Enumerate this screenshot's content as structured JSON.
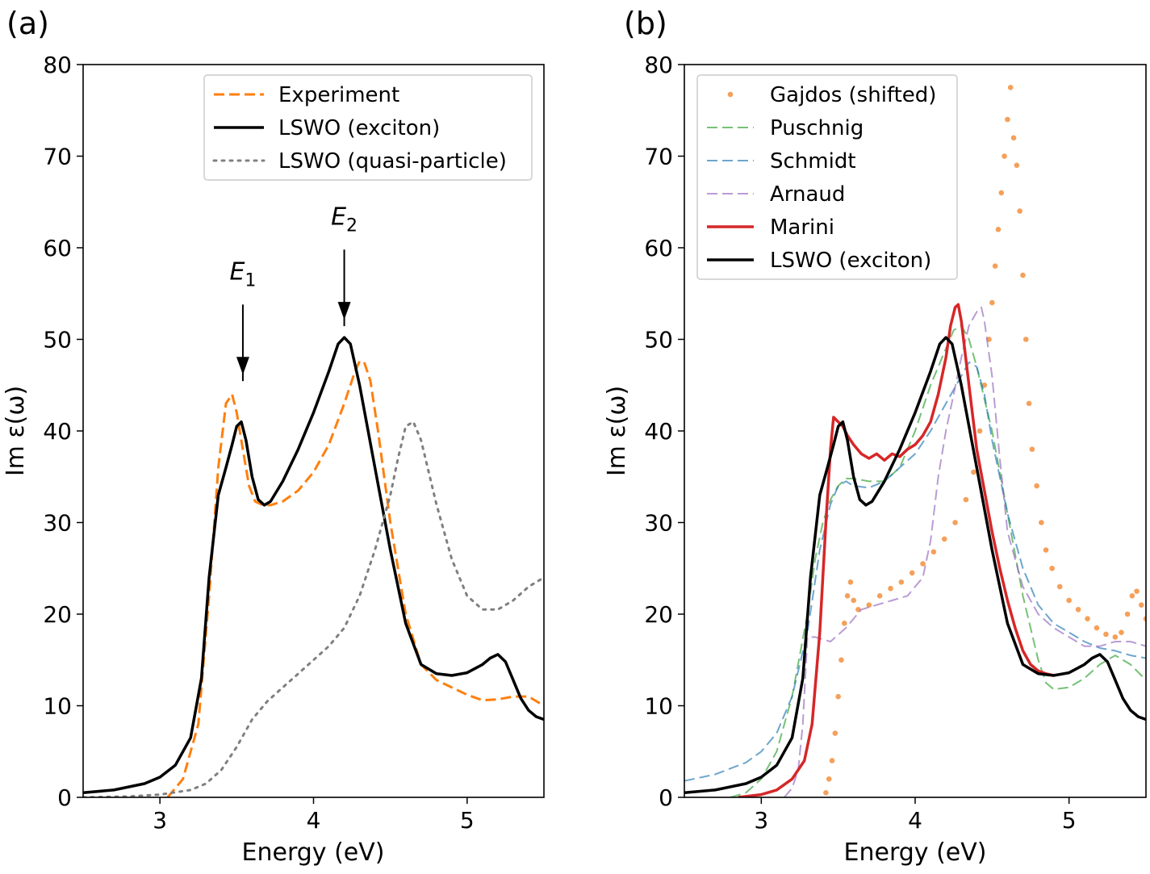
{
  "chart_data": [
    {
      "panel_label": "(a)",
      "type": "line",
      "xlabel": "Energy (eV)",
      "ylabel": "Im ε(ω)",
      "xlim": [
        2.5,
        5.5
      ],
      "ylim": [
        0,
        80
      ],
      "xticks": [
        3,
        4,
        5
      ],
      "yticks": [
        0,
        10,
        20,
        30,
        40,
        50,
        60,
        70,
        80
      ],
      "grid": false,
      "legend_position": "top-right",
      "annotations": [
        {
          "text": "E1",
          "main": "E",
          "sub": "1",
          "x": 3.54,
          "y_tip": 46.5,
          "y_tail": 53.8,
          "y_text": 56.5
        },
        {
          "text": "E2",
          "main": "E",
          "sub": "2",
          "x": 4.2,
          "y_tip": 52.5,
          "y_tail": 59.8,
          "y_text": 62.5
        }
      ],
      "series": [
        {
          "name": "Experiment",
          "color": "#ff7f0e",
          "style": "dashed",
          "width": 3,
          "x": [
            3.05,
            3.15,
            3.25,
            3.32,
            3.38,
            3.43,
            3.47,
            3.5,
            3.54,
            3.58,
            3.62,
            3.67,
            3.72,
            3.8,
            3.9,
            4.0,
            4.1,
            4.2,
            4.27,
            4.3,
            4.33,
            4.37,
            4.42,
            4.5,
            4.6,
            4.7,
            4.8,
            4.9,
            5.0,
            5.1,
            5.2,
            5.3,
            5.4,
            5.5
          ],
          "y": [
            0,
            2,
            8,
            22,
            36,
            43,
            44,
            42,
            38,
            34,
            32.3,
            31.9,
            31.9,
            32.3,
            33.5,
            35.5,
            38.5,
            43,
            46.5,
            47.6,
            47.5,
            45.5,
            40,
            30,
            20,
            14.5,
            12.8,
            12,
            11.2,
            10.6,
            10.7,
            11,
            11,
            10
          ]
        },
        {
          "name": "LSWO (exciton)",
          "color": "#000000",
          "style": "solid",
          "width": 3.5,
          "x": [
            2.5,
            2.7,
            2.9,
            3.0,
            3.1,
            3.2,
            3.27,
            3.32,
            3.38,
            3.43,
            3.47,
            3.5,
            3.53,
            3.56,
            3.6,
            3.64,
            3.68,
            3.72,
            3.8,
            3.9,
            4.0,
            4.1,
            4.16,
            4.2,
            4.24,
            4.3,
            4.4,
            4.5,
            4.6,
            4.7,
            4.8,
            4.9,
            5.0,
            5.1,
            5.15,
            5.2,
            5.25,
            5.3,
            5.35,
            5.4,
            5.45,
            5.5
          ],
          "y": [
            0.5,
            0.8,
            1.5,
            2.2,
            3.5,
            6.5,
            13,
            24,
            33,
            36,
            38.5,
            40.5,
            41,
            39,
            35,
            32.5,
            31.9,
            32.3,
            34.5,
            38,
            42,
            46.5,
            49.5,
            50.2,
            49.5,
            45,
            36,
            27,
            19,
            14.5,
            13.5,
            13.3,
            13.6,
            14.5,
            15.2,
            15.6,
            14.8,
            12.8,
            10.8,
            9.5,
            8.8,
            8.5
          ]
        },
        {
          "name": "LSWO (quasi-particle)",
          "color": "#808080",
          "style": "dotted",
          "width": 3,
          "x": [
            2.5,
            2.8,
            3.0,
            3.2,
            3.3,
            3.4,
            3.5,
            3.6,
            3.7,
            3.8,
            3.9,
            4.0,
            4.1,
            4.2,
            4.3,
            4.4,
            4.5,
            4.55,
            4.6,
            4.65,
            4.7,
            4.8,
            4.9,
            5.0,
            5.1,
            5.2,
            5.3,
            5.4,
            5.5
          ],
          "y": [
            0,
            0.1,
            0.3,
            0.8,
            1.5,
            3,
            5.5,
            8.5,
            10.5,
            12,
            13.5,
            15,
            16.5,
            18.5,
            22,
            27,
            33,
            37,
            40.5,
            41,
            39,
            32,
            26,
            22,
            20.5,
            20.5,
            21.5,
            23,
            24
          ]
        }
      ]
    },
    {
      "panel_label": "(b)",
      "type": "line",
      "xlabel": "Energy (eV)",
      "ylabel": "Im ε(ω)",
      "xlim": [
        2.5,
        5.5
      ],
      "ylim": [
        0,
        80
      ],
      "xticks": [
        3,
        4,
        5
      ],
      "yticks": [
        0,
        10,
        20,
        30,
        40,
        50,
        60,
        70,
        80
      ],
      "grid": false,
      "legend_position": "top-left",
      "series": [
        {
          "name": "Gajdos (shifted)",
          "color": "#f5a05a",
          "style": "dots",
          "width": 0,
          "x": [
            3.42,
            3.44,
            3.46,
            3.48,
            3.5,
            3.52,
            3.54,
            3.56,
            3.58,
            3.6,
            3.63,
            3.7,
            3.77,
            3.84,
            3.91,
            3.98,
            4.05,
            4.12,
            4.19,
            4.26,
            4.33,
            4.38,
            4.42,
            4.45,
            4.48,
            4.5,
            4.52,
            4.54,
            4.56,
            4.58,
            4.6,
            4.62,
            4.64,
            4.66,
            4.68,
            4.7,
            4.72,
            4.74,
            4.76,
            4.79,
            4.82,
            4.85,
            4.89,
            4.94,
            5.0,
            5.06,
            5.12,
            5.18,
            5.24,
            5.3,
            5.34,
            5.38,
            5.41,
            5.44,
            5.47,
            5.5
          ],
          "y": [
            0.5,
            2,
            4,
            7,
            11,
            15,
            19,
            22,
            23.5,
            21.5,
            20.5,
            21,
            22,
            22.8,
            23.5,
            24.5,
            25.5,
            26.8,
            28.2,
            30,
            32.5,
            35.5,
            40,
            45,
            50,
            54,
            58,
            62,
            66,
            70,
            74,
            77.5,
            72,
            69,
            64,
            57,
            50,
            43,
            38,
            34,
            30,
            27,
            25,
            23,
            21.5,
            20.5,
            19.5,
            18.5,
            17.8,
            17.5,
            18,
            20,
            22,
            22.5,
            21,
            19.5
          ]
        },
        {
          "name": "Puschnig",
          "color": "#2ca02c",
          "style": "dashed",
          "width": 2,
          "opacity": 0.65,
          "x": [
            2.8,
            2.9,
            3.0,
            3.1,
            3.2,
            3.3,
            3.35,
            3.4,
            3.45,
            3.5,
            3.55,
            3.6,
            3.7,
            3.8,
            3.9,
            4.0,
            4.1,
            4.2,
            4.25,
            4.3,
            4.35,
            4.4,
            4.5,
            4.6,
            4.7,
            4.8,
            4.85,
            4.9,
            5.0,
            5.1,
            5.2,
            5.3,
            5.4,
            5.5
          ],
          "y": [
            0,
            0.5,
            2,
            5,
            11,
            20,
            26,
            30,
            32.5,
            34,
            34.8,
            34.8,
            34.5,
            34.5,
            36,
            40,
            45,
            49,
            51,
            51.5,
            50,
            47,
            40,
            31,
            22,
            15,
            12.5,
            11.8,
            12,
            13,
            14.5,
            15.5,
            14.5,
            12.8
          ]
        },
        {
          "name": "Schmidt",
          "color": "#1f77b4",
          "style": "dashed",
          "width": 2,
          "opacity": 0.65,
          "x": [
            2.5,
            2.7,
            2.9,
            3.0,
            3.1,
            3.2,
            3.3,
            3.38,
            3.45,
            3.5,
            3.55,
            3.6,
            3.7,
            3.8,
            3.9,
            4.0,
            4.1,
            4.2,
            4.25,
            4.3,
            4.35,
            4.4,
            4.45,
            4.5,
            4.6,
            4.7,
            4.8,
            4.9,
            5.0,
            5.1,
            5.2,
            5.3,
            5.4,
            5.5
          ],
          "y": [
            1.8,
            2.5,
            3.8,
            5,
            7,
            11,
            18,
            27,
            32,
            34,
            34.5,
            34,
            33.8,
            34.5,
            36,
            37.5,
            40,
            43,
            44.5,
            46,
            47.5,
            47,
            44,
            39,
            31,
            25,
            21,
            19,
            18,
            17,
            16.3,
            16,
            15.5,
            15.2
          ]
        },
        {
          "name": "Arnaud",
          "color": "#9467bd",
          "style": "dashed",
          "width": 2,
          "opacity": 0.65,
          "x": [
            3.15,
            3.2,
            3.24,
            3.27,
            3.3,
            3.35,
            3.45,
            3.55,
            3.65,
            3.75,
            3.85,
            3.95,
            4.05,
            4.1,
            4.15,
            4.2,
            4.25,
            4.3,
            4.35,
            4.4,
            4.43,
            4.45,
            4.5,
            4.55,
            4.6,
            4.7,
            4.8,
            4.9,
            5.0,
            5.1,
            5.2,
            5.3,
            5.4,
            5.5
          ],
          "y": [
            0,
            1,
            3,
            8,
            17.5,
            17.5,
            17,
            18.5,
            20.5,
            21,
            21.5,
            22,
            24,
            28,
            35,
            40,
            44,
            48,
            51.5,
            53,
            53.5,
            52,
            46,
            37,
            29,
            23,
            20,
            18.5,
            17.5,
            16.5,
            16.5,
            17,
            17,
            16.5
          ]
        },
        {
          "name": "Marini",
          "color": "#d62728",
          "style": "solid",
          "width": 3.5,
          "x": [
            2.85,
            3.0,
            3.1,
            3.2,
            3.28,
            3.33,
            3.38,
            3.42,
            3.45,
            3.47,
            3.5,
            3.53,
            3.56,
            3.6,
            3.65,
            3.7,
            3.75,
            3.8,
            3.85,
            3.9,
            3.95,
            4.0,
            4.05,
            4.1,
            4.15,
            4.2,
            4.23,
            4.26,
            4.28,
            4.3,
            4.35,
            4.4,
            4.45,
            4.5,
            4.55,
            4.6,
            4.65,
            4.7,
            4.75,
            4.8,
            4.85,
            4.9
          ],
          "y": [
            0,
            0.3,
            0.8,
            2,
            4,
            8,
            18,
            30,
            38,
            41.5,
            41,
            40.5,
            39.5,
            38.5,
            37.5,
            37,
            37.5,
            36.8,
            37.5,
            37.2,
            38,
            38.5,
            39.5,
            41,
            44,
            48,
            51.5,
            53.5,
            53.8,
            52,
            45,
            38,
            33.5,
            29,
            25,
            21.5,
            18.5,
            16,
            14.5,
            13.8,
            13.5,
            13.3
          ]
        },
        {
          "name": "LSWO (exciton)",
          "color": "#000000",
          "style": "solid",
          "width": 3.5,
          "x": [
            2.5,
            2.7,
            2.9,
            3.0,
            3.1,
            3.2,
            3.27,
            3.32,
            3.38,
            3.43,
            3.47,
            3.5,
            3.53,
            3.56,
            3.6,
            3.64,
            3.68,
            3.72,
            3.8,
            3.9,
            4.0,
            4.1,
            4.16,
            4.2,
            4.24,
            4.3,
            4.4,
            4.5,
            4.6,
            4.7,
            4.8,
            4.9,
            5.0,
            5.1,
            5.15,
            5.2,
            5.25,
            5.3,
            5.35,
            5.4,
            5.45,
            5.5
          ],
          "y": [
            0.5,
            0.8,
            1.5,
            2.2,
            3.5,
            6.5,
            13,
            24,
            33,
            36,
            38.5,
            40.5,
            41,
            39,
            35,
            32.5,
            31.9,
            32.3,
            34.5,
            38,
            42,
            46.5,
            49.5,
            50.2,
            49.5,
            45,
            36,
            27,
            19,
            14.5,
            13.5,
            13.3,
            13.6,
            14.5,
            15.2,
            15.6,
            14.8,
            12.8,
            10.8,
            9.5,
            8.8,
            8.5
          ]
        }
      ]
    }
  ]
}
